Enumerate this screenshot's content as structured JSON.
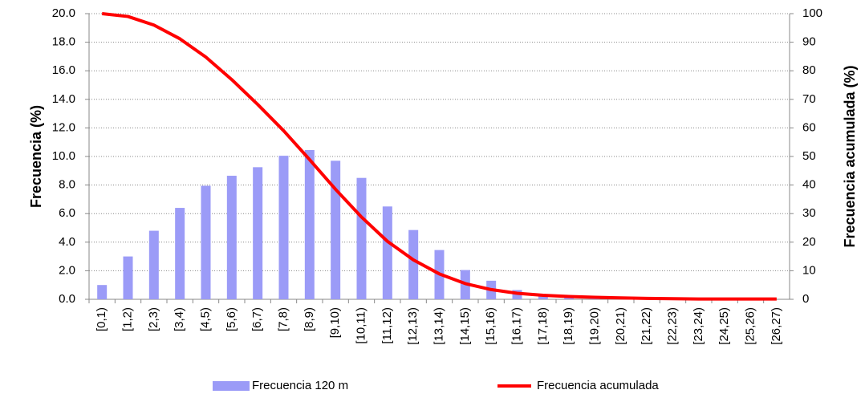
{
  "chart_data": {
    "type": "bar-line",
    "categories": [
      "[0,1)",
      "[1,2)",
      "[2,3)",
      "[3,4)",
      "[4,5)",
      "[5,6)",
      "[6,7)",
      "[7,8)",
      "[8,9)",
      "[9,10)",
      "[10,11)",
      "[11,12)",
      "[12,13)",
      "[13,14)",
      "[14,15)",
      "[15,16)",
      "[16,17)",
      "[17,18)",
      "[18,19)",
      "[19,20)",
      "[20,21)",
      "[21,22)",
      "[22,23)",
      "[23,24)",
      "[24,25)",
      "[25,26)",
      "[26,27)"
    ],
    "series": [
      {
        "name": "Frecuencia 120 m",
        "type": "bar",
        "color": "#9b9bf7",
        "values": [
          1.0,
          3.0,
          4.8,
          6.4,
          7.95,
          8.65,
          9.25,
          10.05,
          10.45,
          9.7,
          8.5,
          6.5,
          4.85,
          3.45,
          2.05,
          1.3,
          0.65,
          0.35,
          0.15,
          0.1,
          0.05,
          0,
          0,
          0,
          0,
          0,
          0
        ]
      },
      {
        "name": "Frecuencia acumulada",
        "type": "line",
        "axis": "y2",
        "color": "#ff0000",
        "values": [
          100,
          99,
          96,
          91.2,
          84.8,
          76.9,
          68.2,
          59.0,
          48.9,
          38.5,
          28.8,
          20.3,
          13.8,
          8.9,
          5.5,
          3.4,
          2.1,
          1.4,
          1.0,
          0.7,
          0.5,
          0.3,
          0.2,
          0.1,
          0.1,
          0.1,
          0.1
        ]
      }
    ],
    "ylabel": "Frecuencia (%)",
    "y2label": "Frecuencia acumulada (%)",
    "ylim": [
      0,
      20
    ],
    "yticks": [
      {
        "value": 0,
        "label": "0.0"
      },
      {
        "value": 2,
        "label": "2.0"
      },
      {
        "value": 4,
        "label": "4.0"
      },
      {
        "value": 6,
        "label": "6.0"
      },
      {
        "value": 8,
        "label": "8.0"
      },
      {
        "value": 10,
        "label": "10.0"
      },
      {
        "value": 12,
        "label": "12.0"
      },
      {
        "value": 14,
        "label": "14.0"
      },
      {
        "value": 16,
        "label": "16.0"
      },
      {
        "value": 18,
        "label": "18.0"
      },
      {
        "value": 20,
        "label": "20.0"
      }
    ],
    "y2lim": [
      0,
      100
    ],
    "y2ticks": [
      0,
      10,
      20,
      30,
      40,
      50,
      60,
      70,
      80,
      90,
      100
    ],
    "grid": true,
    "legend": "bottom"
  }
}
